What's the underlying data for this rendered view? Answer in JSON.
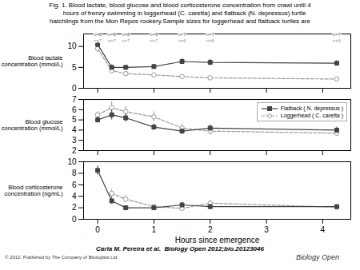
{
  "chart_data": [
    {
      "type": "line",
      "title": "Fig. 1. Blood lactate, blood glucose and blood corticosterone concentration from crawl until 4\n     hours of frenzy swimming in loggerhead (C. caretta) and flatback (N. depressus) turtle\nhatchlings from the Mon Repos rookery.Sample sizes for loggerhead and flatback turtles are",
      "x": [
        0.0,
        0.25,
        0.5,
        1.0,
        1.5,
        2.0,
        4.25
      ],
      "xlim": [
        -0.25,
        4.5
      ],
      "xticks": [
        0,
        1,
        2,
        3,
        4
      ],
      "tick_labels": "y",
      "ylabel": "Blood lactate\nconcentration (mmol/L)",
      "ylim": [
        0,
        13
      ],
      "yticks": [
        0,
        5,
        10
      ],
      "series": [
        {
          "name": "Flatback ( N. depressus )",
          "color": "#444444",
          "marker": "square",
          "line_style": "solid",
          "values": [
            10.5,
            5.0,
            5.0,
            5.2,
            6.4,
            6.2,
            6.0
          ],
          "errors": [
            0.8,
            0.6,
            0.5,
            0.5,
            0.7,
            0.7,
            0.6
          ]
        },
        {
          "name": "Loggerhead ( C. caretta )",
          "color": "#999999",
          "marker": "open_circle",
          "line_style": "dashed",
          "values": [
            9.5,
            4.2,
            3.5,
            3.2,
            2.8,
            2.5,
            2.2
          ],
          "errors": [
            1.0,
            0.5,
            0.4,
            0.4,
            0.4,
            0.4,
            0.3
          ]
        }
      ],
      "annotations": [
        {
          "x": 0.0,
          "y": 12.6,
          "text": "n=8",
          "color": "#555555"
        },
        {
          "x": 0.25,
          "y": 12.6,
          "text": "n=8",
          "color": "#555555"
        },
        {
          "x": 0.5,
          "y": 12.6,
          "text": "n=8",
          "color": "#555555"
        },
        {
          "x": 1.0,
          "y": 12.6,
          "text": "n=8",
          "color": "#555555"
        },
        {
          "x": 1.5,
          "y": 12.6,
          "text": "n=7",
          "color": "#555555"
        },
        {
          "x": 2.0,
          "y": 12.6,
          "text": "n=7",
          "color": "#555555"
        },
        {
          "x": 4.25,
          "y": 12.6,
          "text": "n=7",
          "color": "#555555"
        },
        {
          "x": 0.0,
          "y": 11.8,
          "text": "n=7",
          "color": "#999999"
        },
        {
          "x": 0.25,
          "y": 11.8,
          "text": "n=7",
          "color": "#999999"
        },
        {
          "x": 0.5,
          "y": 11.8,
          "text": "n=7",
          "color": "#999999"
        },
        {
          "x": 1.0,
          "y": 11.8,
          "text": "n=7",
          "color": "#999999"
        },
        {
          "x": 1.5,
          "y": 11.8,
          "text": "n=6",
          "color": "#999999"
        },
        {
          "x": 2.0,
          "y": 11.8,
          "text": "n=6",
          "color": "#999999"
        },
        {
          "x": 4.25,
          "y": 11.8,
          "text": "n=6",
          "color": "#999999"
        }
      ]
    },
    {
      "type": "line",
      "x": [
        0.0,
        0.25,
        0.5,
        1.0,
        1.5,
        2.0,
        4.25
      ],
      "xlim": [
        -0.25,
        4.5
      ],
      "xticks": [
        0,
        1,
        2,
        3,
        4
      ],
      "tick_labels": "y",
      "ylabel": "Blood glucose\nconcentration (mmol/L)",
      "ylim": [
        2,
        7
      ],
      "yticks": [
        2,
        3,
        4,
        5,
        6,
        7
      ],
      "legend": "upper right",
      "series": [
        {
          "name": "Flatback ( N. depressus )",
          "color": "#444444",
          "marker": "square",
          "line_style": "solid",
          "values": [
            5.0,
            5.5,
            5.2,
            4.3,
            3.9,
            4.2,
            4.0
          ],
          "errors": [
            0.3,
            0.5,
            0.4,
            0.3,
            0.2,
            0.3,
            0.3
          ]
        },
        {
          "name": "Loggerhead ( C. caretta )",
          "color": "#999999",
          "marker": "open_circle",
          "line_style": "dashed",
          "values": [
            5.5,
            6.2,
            5.8,
            5.3,
            4.2,
            3.9,
            3.7
          ],
          "errors": [
            0.3,
            0.6,
            0.5,
            0.5,
            0.4,
            0.4,
            0.3
          ]
        }
      ]
    },
    {
      "type": "line",
      "x": [
        0.0,
        0.25,
        0.5,
        1.0,
        1.5,
        2.0,
        4.25
      ],
      "xlim": [
        -0.25,
        4.5
      ],
      "xticks": [
        0,
        1,
        2,
        3,
        4
      ],
      "xlabel": "Hours since emergence",
      "ylabel": "Blood corticosterone\nconcentration (ng/mL)",
      "ylim": [
        0,
        10
      ],
      "yticks": [
        0,
        2,
        4,
        6,
        8,
        10
      ],
      "series": [
        {
          "name": "Flatback ( N. depressus )",
          "color": "#444444",
          "marker": "square",
          "line_style": "solid",
          "values": [
            8.5,
            3.2,
            2.0,
            2.0,
            2.5,
            2.2,
            2.2
          ],
          "errors": [
            0.8,
            0.6,
            0.3,
            0.3,
            0.5,
            0.4,
            0.3
          ]
        },
        {
          "name": "Loggerhead ( C. caretta )",
          "color": "#999999",
          "marker": "open_circle",
          "line_style": "dashed",
          "values": [
            null,
            4.5,
            3.5,
            2.2,
            1.9,
            2.8,
            2.1
          ],
          "errors": [
            null,
            0.7,
            0.6,
            0.4,
            0.3,
            0.5,
            0.3
          ]
        }
      ],
      "caption": [
        "Carla M. Pereira et al.  Biology Open 2012;bio.20123046",
        "© 2012. Published by The Company of Biologists Ltd",
        "Biology Open"
      ]
    }
  ]
}
